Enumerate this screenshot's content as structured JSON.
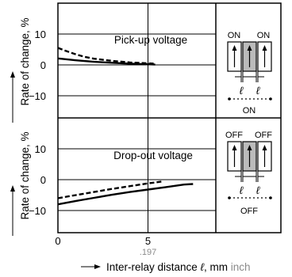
{
  "chart_data": [
    {
      "type": "line",
      "annotation": "Pick-up voltage",
      "ylabel": "Rate of change, %",
      "xlim": [
        0,
        9
      ],
      "ylim": [
        -15,
        15
      ],
      "yticks": [
        "10",
        "0",
        "−10"
      ],
      "series": [
        {
          "style": "solid",
          "x": [
            0,
            1,
            2,
            3,
            4,
            5,
            5.4
          ],
          "y": [
            2.1,
            1.5,
            1.0,
            0.7,
            0.4,
            0.2,
            0.1
          ]
        },
        {
          "style": "dashed",
          "x": [
            0,
            0.5,
            1,
            1.5,
            2,
            3,
            4,
            5,
            5.4
          ],
          "y": [
            5.5,
            4.4,
            3.4,
            2.6,
            2.0,
            1.3,
            0.8,
            0.5,
            0.4
          ]
        }
      ],
      "inset": {
        "labels": [
          "ON",
          "ON"
        ],
        "distance": [
          "ℓ",
          "ℓ"
        ],
        "caption": "ON"
      }
    },
    {
      "type": "line",
      "annotation": "Drop-out voltage",
      "ylabel": "Rate of change, %",
      "xlim": [
        0,
        9
      ],
      "ylim": [
        -15,
        15
      ],
      "yticks": [
        "10",
        "0",
        "−10"
      ],
      "series": [
        {
          "style": "solid",
          "x": [
            0,
            1,
            2,
            3,
            4,
            5,
            6,
            7,
            7.5
          ],
          "y": [
            -8.0,
            -6.9,
            -5.9,
            -4.9,
            -4.0,
            -3.2,
            -2.4,
            -1.6,
            -1.4
          ]
        },
        {
          "style": "dashed",
          "x": [
            0,
            1,
            2,
            3,
            4,
            5,
            5.8
          ],
          "y": [
            -6.0,
            -5.0,
            -4.0,
            -3.0,
            -2.1,
            -1.2,
            -0.6
          ]
        }
      ],
      "inset": {
        "labels": [
          "OFF",
          "OFF"
        ],
        "distance": [
          "ℓ",
          "ℓ"
        ],
        "caption": "OFF"
      }
    }
  ],
  "xaxis": {
    "ticks": [
      "0",
      "5"
    ],
    "sub_tick": ".197",
    "label": "Inter-relay distance",
    "symbol": "ℓ",
    "unit_mm": ", mm",
    "unit_inch": "inch"
  }
}
